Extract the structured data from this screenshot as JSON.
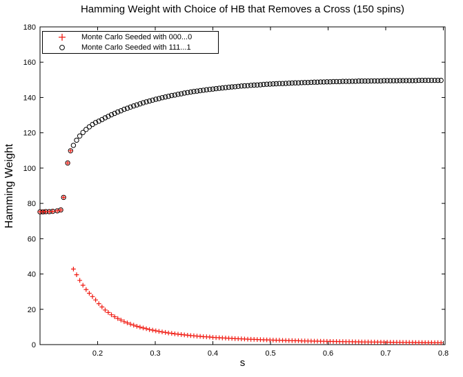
{
  "figure": {
    "background": "#ffffff",
    "axis_color": "#000000"
  },
  "chart_data": {
    "type": "scatter",
    "title": "Hamming Weight with Choice of HB that Removes a Cross (150 spins)",
    "xlabel": "s",
    "ylabel": "Hamming Weight",
    "xlim": [
      0.1,
      0.803
    ],
    "ylim": [
      0,
      180
    ],
    "x_ticks": [
      0.2,
      0.3,
      0.4,
      0.5,
      0.6,
      0.7,
      0.8
    ],
    "x_tick_labels": [
      "0.2",
      "0.3",
      "0.4",
      "0.5",
      "0.6",
      "0.7",
      "0.8"
    ],
    "y_ticks": [
      0,
      20,
      40,
      60,
      80,
      100,
      120,
      140,
      160,
      180
    ],
    "y_tick_labels": [
      "0",
      "20",
      "40",
      "60",
      "80",
      "100",
      "120",
      "140",
      "160",
      "180"
    ],
    "grid": false,
    "legend_position": "top-left",
    "series": [
      {
        "name": "Monte Carlo Seeded with 000...0",
        "marker": "plus",
        "color": "#f01910",
        "points": [
          [
            0.1,
            75.2
          ],
          [
            0.105,
            75.2
          ],
          [
            0.11,
            75.3
          ],
          [
            0.116,
            75.3
          ],
          [
            0.122,
            75.5
          ],
          [
            0.13,
            75.8
          ],
          [
            0.136,
            76.3
          ],
          [
            0.141,
            83.4
          ],
          [
            0.148,
            102.9
          ],
          [
            0.153,
            109.8
          ],
          [
            0.158,
            42.8
          ],
          [
            0.1635,
            39.6
          ],
          [
            0.169,
            36.4
          ],
          [
            0.1745,
            33.6
          ],
          [
            0.18,
            31.2
          ],
          [
            0.1855,
            29.1
          ],
          [
            0.191,
            27.2
          ],
          [
            0.1965,
            25.3
          ],
          [
            0.202,
            23.2
          ],
          [
            0.2075,
            21.3
          ],
          [
            0.213,
            19.6
          ],
          [
            0.2185,
            18.2
          ],
          [
            0.224,
            16.9
          ],
          [
            0.2295,
            15.8
          ],
          [
            0.235,
            14.8
          ],
          [
            0.2405,
            13.9
          ],
          [
            0.246,
            13.0
          ],
          [
            0.2515,
            12.3
          ],
          [
            0.257,
            11.6
          ],
          [
            0.2625,
            11.0
          ],
          [
            0.268,
            10.4
          ],
          [
            0.2735,
            9.9
          ],
          [
            0.279,
            9.4
          ],
          [
            0.2845,
            9.0
          ],
          [
            0.29,
            8.5
          ],
          [
            0.2955,
            8.2
          ],
          [
            0.301,
            7.8
          ],
          [
            0.3065,
            7.5
          ],
          [
            0.312,
            7.2
          ],
          [
            0.3175,
            6.9
          ],
          [
            0.323,
            6.6
          ],
          [
            0.3285,
            6.4
          ],
          [
            0.334,
            6.1
          ],
          [
            0.3395,
            5.9
          ],
          [
            0.345,
            5.7
          ],
          [
            0.3505,
            5.5
          ],
          [
            0.356,
            5.3
          ],
          [
            0.3615,
            5.1
          ],
          [
            0.367,
            5.0
          ],
          [
            0.3725,
            4.8
          ],
          [
            0.378,
            4.7
          ],
          [
            0.3835,
            4.5
          ],
          [
            0.389,
            4.4
          ],
          [
            0.3945,
            4.3
          ],
          [
            0.4,
            4.1
          ],
          [
            0.4055,
            4.0
          ],
          [
            0.411,
            3.9
          ],
          [
            0.4165,
            3.8
          ],
          [
            0.422,
            3.7
          ],
          [
            0.4275,
            3.6
          ],
          [
            0.433,
            3.5
          ],
          [
            0.4385,
            3.4
          ],
          [
            0.444,
            3.3
          ],
          [
            0.4495,
            3.25
          ],
          [
            0.455,
            3.15
          ],
          [
            0.4605,
            3.1
          ],
          [
            0.466,
            3.0
          ],
          [
            0.4715,
            2.95
          ],
          [
            0.477,
            2.9
          ],
          [
            0.4825,
            2.8
          ],
          [
            0.488,
            2.75
          ],
          [
            0.4935,
            2.7
          ],
          [
            0.499,
            2.6
          ],
          [
            0.5045,
            2.55
          ],
          [
            0.51,
            2.5
          ],
          [
            0.5155,
            2.45
          ],
          [
            0.521,
            2.4
          ],
          [
            0.5265,
            2.35
          ],
          [
            0.532,
            2.3
          ],
          [
            0.5375,
            2.25
          ],
          [
            0.543,
            2.2
          ],
          [
            0.5485,
            2.17
          ],
          [
            0.554,
            2.12
          ],
          [
            0.5595,
            2.08
          ],
          [
            0.565,
            2.04
          ],
          [
            0.5705,
            2.0
          ],
          [
            0.576,
            1.97
          ],
          [
            0.5815,
            1.94
          ],
          [
            0.587,
            1.9
          ],
          [
            0.5925,
            1.87
          ],
          [
            0.598,
            1.83
          ],
          [
            0.6035,
            1.8
          ],
          [
            0.609,
            1.77
          ],
          [
            0.6145,
            1.74
          ],
          [
            0.62,
            1.71
          ],
          [
            0.6255,
            1.68
          ],
          [
            0.631,
            1.65
          ],
          [
            0.6365,
            1.63
          ],
          [
            0.642,
            1.6
          ],
          [
            0.6475,
            1.58
          ],
          [
            0.653,
            1.55
          ],
          [
            0.6585,
            1.53
          ],
          [
            0.664,
            1.5
          ],
          [
            0.6695,
            1.48
          ],
          [
            0.675,
            1.45
          ],
          [
            0.6805,
            1.44
          ],
          [
            0.686,
            1.41
          ],
          [
            0.6915,
            1.39
          ],
          [
            0.697,
            1.37
          ],
          [
            0.7025,
            1.35
          ],
          [
            0.708,
            1.33
          ],
          [
            0.7135,
            1.31
          ],
          [
            0.719,
            1.29
          ],
          [
            0.7245,
            1.28
          ],
          [
            0.73,
            1.26
          ],
          [
            0.7355,
            1.24
          ],
          [
            0.741,
            1.22
          ],
          [
            0.7465,
            1.21
          ],
          [
            0.752,
            1.19
          ],
          [
            0.7575,
            1.18
          ],
          [
            0.763,
            1.16
          ],
          [
            0.7685,
            1.15
          ],
          [
            0.774,
            1.13
          ],
          [
            0.7795,
            1.12
          ],
          [
            0.785,
            1.1
          ],
          [
            0.7905,
            1.09
          ],
          [
            0.796,
            1.07
          ]
        ]
      },
      {
        "name": "Monte Carlo Seeded with 111...1",
        "marker": "circle",
        "color": "#000000",
        "points": [
          [
            0.1,
            75.2
          ],
          [
            0.105,
            75.2
          ],
          [
            0.11,
            75.3
          ],
          [
            0.116,
            75.3
          ],
          [
            0.122,
            75.5
          ],
          [
            0.13,
            75.8
          ],
          [
            0.136,
            76.3
          ],
          [
            0.141,
            83.4
          ],
          [
            0.148,
            102.9
          ],
          [
            0.153,
            109.8
          ],
          [
            0.158,
            112.9
          ],
          [
            0.1635,
            115.8
          ],
          [
            0.169,
            118.2
          ],
          [
            0.1745,
            120.2
          ],
          [
            0.18,
            121.9
          ],
          [
            0.1855,
            123.4
          ],
          [
            0.191,
            124.7
          ],
          [
            0.1965,
            125.8
          ],
          [
            0.202,
            126.6
          ],
          [
            0.2075,
            127.5
          ],
          [
            0.213,
            128.5
          ],
          [
            0.2185,
            129.3
          ],
          [
            0.224,
            130.2
          ],
          [
            0.2295,
            131.0
          ],
          [
            0.235,
            131.8
          ],
          [
            0.2405,
            132.5
          ],
          [
            0.246,
            133.3
          ],
          [
            0.2515,
            133.9
          ],
          [
            0.257,
            134.6
          ],
          [
            0.2625,
            135.2
          ],
          [
            0.268,
            135.8
          ],
          [
            0.2735,
            136.4
          ],
          [
            0.279,
            137.0
          ],
          [
            0.2845,
            137.5
          ],
          [
            0.29,
            138.0
          ],
          [
            0.2955,
            138.5
          ],
          [
            0.301,
            139.0
          ],
          [
            0.3065,
            139.4
          ],
          [
            0.312,
            139.9
          ],
          [
            0.3175,
            140.3
          ],
          [
            0.323,
            140.7
          ],
          [
            0.3285,
            141.1
          ],
          [
            0.334,
            141.4
          ],
          [
            0.3395,
            141.8
          ],
          [
            0.345,
            142.1
          ],
          [
            0.3505,
            142.5
          ],
          [
            0.356,
            142.8
          ],
          [
            0.3615,
            143.1
          ],
          [
            0.367,
            143.4
          ],
          [
            0.3725,
            143.6
          ],
          [
            0.378,
            143.9
          ],
          [
            0.3835,
            144.1
          ],
          [
            0.389,
            144.4
          ],
          [
            0.3945,
            144.6
          ],
          [
            0.4,
            144.8
          ],
          [
            0.4055,
            145.0
          ],
          [
            0.411,
            145.2
          ],
          [
            0.4165,
            145.4
          ],
          [
            0.422,
            145.6
          ],
          [
            0.4275,
            145.8
          ],
          [
            0.433,
            146.0
          ],
          [
            0.4385,
            146.1
          ],
          [
            0.444,
            146.3
          ],
          [
            0.4495,
            146.5
          ],
          [
            0.455,
            146.6
          ],
          [
            0.4605,
            146.7
          ],
          [
            0.466,
            146.9
          ],
          [
            0.4715,
            147.0
          ],
          [
            0.477,
            147.1
          ],
          [
            0.4825,
            147.2
          ],
          [
            0.488,
            147.4
          ],
          [
            0.4935,
            147.5
          ],
          [
            0.499,
            147.6
          ],
          [
            0.5045,
            147.7
          ],
          [
            0.51,
            147.8
          ],
          [
            0.5155,
            147.9
          ],
          [
            0.521,
            147.9
          ],
          [
            0.5265,
            148.0
          ],
          [
            0.532,
            148.1
          ],
          [
            0.5375,
            148.2
          ],
          [
            0.543,
            148.3
          ],
          [
            0.5485,
            148.3
          ],
          [
            0.554,
            148.4
          ],
          [
            0.5595,
            148.5
          ],
          [
            0.565,
            148.5
          ],
          [
            0.5705,
            148.6
          ],
          [
            0.576,
            148.7
          ],
          [
            0.5815,
            148.7
          ],
          [
            0.587,
            148.8
          ],
          [
            0.5925,
            148.8
          ],
          [
            0.598,
            148.9
          ],
          [
            0.6035,
            148.9
          ],
          [
            0.609,
            149.0
          ],
          [
            0.6145,
            149.0
          ],
          [
            0.62,
            149.0
          ],
          [
            0.6255,
            149.1
          ],
          [
            0.631,
            149.1
          ],
          [
            0.6365,
            149.1
          ],
          [
            0.642,
            149.2
          ],
          [
            0.6475,
            149.2
          ],
          [
            0.653,
            149.3
          ],
          [
            0.6585,
            149.3
          ],
          [
            0.664,
            149.3
          ],
          [
            0.6695,
            149.3
          ],
          [
            0.675,
            149.4
          ],
          [
            0.6805,
            149.4
          ],
          [
            0.686,
            149.4
          ],
          [
            0.6915,
            149.4
          ],
          [
            0.697,
            149.5
          ],
          [
            0.7025,
            149.5
          ],
          [
            0.708,
            149.5
          ],
          [
            0.7135,
            149.5
          ],
          [
            0.719,
            149.5
          ],
          [
            0.7245,
            149.6
          ],
          [
            0.73,
            149.6
          ],
          [
            0.7355,
            149.6
          ],
          [
            0.741,
            149.6
          ],
          [
            0.7465,
            149.6
          ],
          [
            0.752,
            149.6
          ],
          [
            0.7575,
            149.7
          ],
          [
            0.763,
            149.7
          ],
          [
            0.7685,
            149.7
          ],
          [
            0.774,
            149.7
          ],
          [
            0.7795,
            149.7
          ],
          [
            0.785,
            149.7
          ],
          [
            0.7905,
            149.7
          ],
          [
            0.796,
            149.7
          ]
        ]
      }
    ]
  }
}
